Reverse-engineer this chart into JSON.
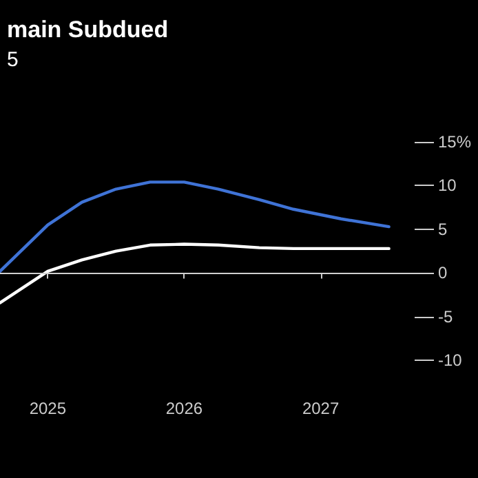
{
  "chart_data": {
    "type": "line",
    "title": "main Subdued",
    "subtitle": "5",
    "x": [
      2024.65,
      2025.0,
      2025.25,
      2025.5,
      2025.75,
      2026.0,
      2026.25,
      2026.55,
      2026.8,
      2027.15,
      2027.5
    ],
    "series": [
      {
        "color": "#3f73d6",
        "values": [
          0.2,
          5.5,
          8.1,
          9.6,
          10.4,
          10.4,
          9.6,
          8.4,
          7.3,
          6.2,
          5.3
        ]
      },
      {
        "color": "#ffffff",
        "values": [
          -3.4,
          0.2,
          1.5,
          2.5,
          3.2,
          3.3,
          3.2,
          2.9,
          2.8,
          2.8,
          2.8
        ]
      }
    ],
    "xlim": [
      2024.65,
      2027.83
    ],
    "xticks": [
      2025,
      2026,
      2027
    ],
    "ylim": [
      -10,
      15
    ],
    "yticks": [
      -10,
      -5,
      0,
      5,
      10,
      {
        "value": 15,
        "label": "15%"
      }
    ],
    "ref_lines": [
      {
        "axis": "y",
        "value": 0,
        "color": "#d0d0d0"
      }
    ],
    "grid": false,
    "marker": "none",
    "line_style": "solid"
  }
}
